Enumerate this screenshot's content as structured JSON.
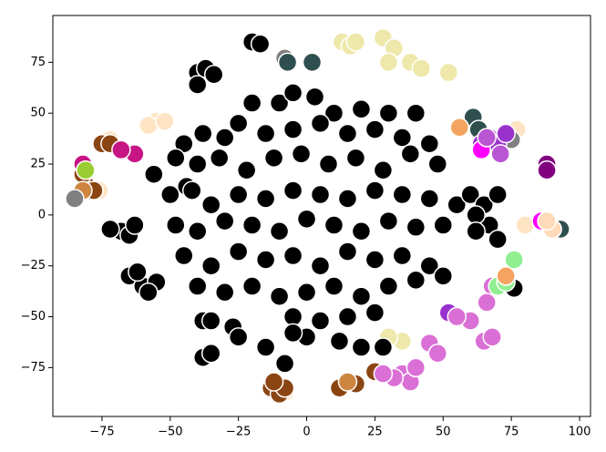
{
  "chart_data": {
    "type": "scatter",
    "xlim": [
      -93,
      104
    ],
    "ylim": [
      -99,
      98
    ],
    "xticks": [
      {
        "value": -75,
        "label": "−75"
      },
      {
        "value": -50,
        "label": "−50"
      },
      {
        "value": -25,
        "label": "−25"
      },
      0,
      25,
      50,
      75,
      100
    ],
    "yticks": [
      {
        "value": -75,
        "label": "−75"
      },
      {
        "value": -50,
        "label": "−50"
      },
      {
        "value": -25,
        "label": "−25"
      },
      0,
      25,
      50,
      75
    ],
    "series": [
      {
        "color": "#eee8aa",
        "x": [
          13,
          16,
          18,
          28,
          32,
          30,
          38,
          42,
          52,
          35,
          30
        ],
        "values": [
          85,
          83,
          85,
          87,
          82,
          75,
          75,
          72,
          70,
          -62,
          -60
        ]
      },
      {
        "color": "#ffe4c4",
        "x": [
          -55,
          -58,
          -72,
          -76,
          -12,
          -8,
          80,
          77,
          -52
        ],
        "values": [
          46,
          44,
          37,
          12,
          -85,
          -87,
          -5,
          42,
          46
        ]
      },
      {
        "color": "#000000",
        "x": [
          -65,
          -60,
          -62,
          -55,
          -58,
          -68,
          -72,
          -65,
          -63,
          -56,
          -44,
          -40,
          -37,
          -40,
          -34,
          -20,
          -17,
          -38,
          -35,
          -27,
          -25,
          -38,
          -35,
          -15,
          -8,
          -10,
          -5,
          -20,
          3,
          10,
          20,
          30,
          40,
          -25,
          -45,
          -38,
          -30,
          -15,
          -5,
          5,
          15,
          25,
          35,
          45,
          -48,
          -40,
          -32,
          -22,
          -12,
          -2,
          8,
          18,
          28,
          38,
          48,
          -50,
          -42,
          -35,
          -25,
          -15,
          -5,
          5,
          15,
          25,
          35,
          45,
          55,
          -48,
          -40,
          -30,
          -20,
          -10,
          0,
          10,
          20,
          30,
          40,
          50,
          -45,
          -35,
          -25,
          -15,
          -5,
          5,
          15,
          25,
          35,
          45,
          -40,
          -30,
          -20,
          -10,
          0,
          10,
          20,
          30,
          40,
          50,
          -5,
          5,
          15,
          25,
          0,
          12,
          20,
          -5,
          60,
          65,
          70,
          67,
          62,
          70,
          62,
          76,
          28
        ],
        "values": [
          -30,
          -35,
          -28,
          -33,
          -38,
          -8,
          -7,
          -10,
          -5,
          20,
          14,
          70,
          72,
          64,
          69,
          85,
          84,
          -52,
          -52,
          -55,
          -60,
          -70,
          -68,
          -65,
          -73,
          55,
          60,
          55,
          58,
          50,
          52,
          50,
          50,
          45,
          35,
          40,
          38,
          40,
          42,
          45,
          40,
          42,
          38,
          35,
          28,
          25,
          28,
          22,
          28,
          30,
          25,
          28,
          22,
          30,
          25,
          10,
          12,
          5,
          10,
          8,
          12,
          10,
          8,
          12,
          10,
          8,
          5,
          -5,
          -8,
          -3,
          -5,
          -8,
          -2,
          -5,
          -8,
          -3,
          -6,
          -5,
          -20,
          -25,
          -18,
          -22,
          -20,
          -25,
          -18,
          -22,
          -20,
          -25,
          -35,
          -38,
          -35,
          -40,
          -38,
          -35,
          -40,
          -35,
          -32,
          -30,
          -50,
          -52,
          -50,
          -48,
          -60,
          -62,
          -65,
          -58,
          10,
          5,
          10,
          -5,
          0,
          -12,
          -8,
          -36,
          -65
        ]
      },
      {
        "color": "#8b4513",
        "x": [
          -75,
          -72,
          -81,
          -78,
          -82,
          -13,
          -10,
          -8,
          18,
          12,
          25,
          -12
        ],
        "values": [
          35,
          35,
          15,
          12,
          20,
          -85,
          -88,
          -85,
          -83,
          -85,
          -77,
          -82
        ]
      },
      {
        "color": "#cd853f",
        "x": [
          15,
          -82
        ],
        "values": [
          -82,
          12
        ]
      },
      {
        "color": "#c71585",
        "x": [
          -63,
          -68,
          -82
        ],
        "values": [
          30,
          32,
          25
        ]
      },
      {
        "color": "#9acd32",
        "x": [
          -81
        ],
        "values": [
          22
        ]
      },
      {
        "color": "#808080",
        "x": [
          -8,
          -85,
          75
        ],
        "values": [
          77,
          8,
          37
        ]
      },
      {
        "color": "#2f4f4f",
        "x": [
          -7,
          2,
          61,
          63,
          93
        ],
        "values": [
          75,
          75,
          48,
          42,
          -7
        ]
      },
      {
        "color": "#9932cc",
        "x": [
          67,
          70,
          73,
          64,
          52
        ],
        "values": [
          38,
          35,
          40,
          35,
          -48
        ]
      },
      {
        "color": "#ff00ff",
        "x": [
          86,
          64
        ],
        "values": [
          -3,
          32
        ]
      },
      {
        "color": "#800080",
        "x": [
          88,
          88
        ],
        "values": [
          25,
          22
        ]
      },
      {
        "color": "#da70d6",
        "x": [
          68,
          66,
          65,
          68,
          60,
          45,
          48,
          35,
          38,
          32,
          40,
          28,
          55
        ],
        "values": [
          -35,
          -43,
          -62,
          -60,
          -52,
          -63,
          -68,
          -78,
          -82,
          -80,
          -75,
          -78,
          -50
        ]
      },
      {
        "color": "#90ee90",
        "x": [
          70,
          73,
          76
        ],
        "values": [
          -35,
          -33,
          -22
        ]
      },
      {
        "color": "#f4a460",
        "x": [
          56,
          73
        ],
        "values": [
          43,
          -30
        ]
      },
      {
        "color": "#ffdab9",
        "x": [
          90,
          88
        ],
        "values": [
          -7,
          -3
        ]
      },
      {
        "color": "#ba55d3",
        "x": [
          71,
          66
        ],
        "values": [
          30,
          38
        ]
      }
    ]
  }
}
